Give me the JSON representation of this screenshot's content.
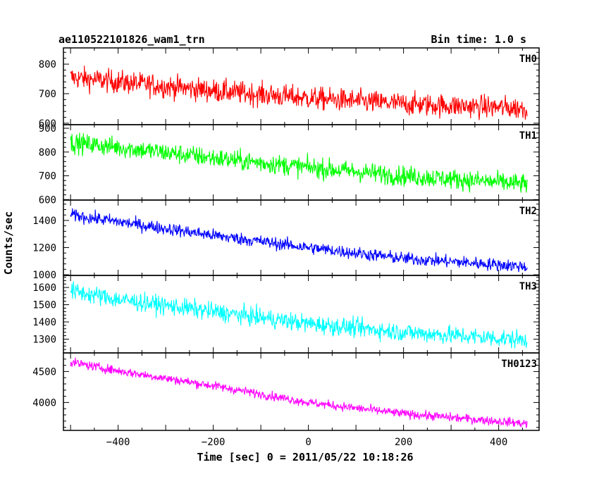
{
  "header": {
    "title": "ae110522101826_wam1_trn",
    "bin_time": "Bin time: 1.0 s"
  },
  "chart_data": {
    "type": "line",
    "xlabel": "Time [sec] 0 = 2011/05/22 10:18:26",
    "ylabel": "Counts/sec",
    "xlim": [
      -515,
      485
    ],
    "x_range": [
      -500,
      460
    ],
    "x_step": 1,
    "xticks": [
      -400,
      -200,
      0,
      200,
      400
    ],
    "grid": false,
    "panels": [
      {
        "name": "TH0",
        "color": "#ff0000",
        "ylim": [
          595,
          855
        ],
        "yticks": [
          600,
          700,
          800
        ],
        "trend": {
          "x": [
            -500,
            -400,
            -200,
            0,
            200,
            460
          ],
          "y": [
            755,
            740,
            710,
            685,
            665,
            650
          ]
        },
        "noise_amplitude": 35
      },
      {
        "name": "TH1",
        "color": "#00ff00",
        "ylim": [
          598,
          915
        ],
        "yticks": [
          600,
          700,
          800,
          900
        ],
        "trend": {
          "x": [
            -500,
            -400,
            -200,
            0,
            200,
            460
          ],
          "y": [
            840,
            820,
            775,
            735,
            700,
            665
          ]
        },
        "noise_amplitude": 38
      },
      {
        "name": "TH2",
        "color": "#0000ff",
        "ylim": [
          995,
          1550
        ],
        "yticks": [
          1000,
          1200,
          1400
        ],
        "trend": {
          "x": [
            -500,
            -400,
            -200,
            0,
            200,
            460
          ],
          "y": [
            1440,
            1390,
            1290,
            1200,
            1120,
            1060
          ]
        },
        "noise_amplitude": 42
      },
      {
        "name": "TH3",
        "color": "#00ffff",
        "ylim": [
          1220,
          1670
        ],
        "yticks": [
          1300,
          1400,
          1500,
          1600
        ],
        "trend": {
          "x": [
            -500,
            -400,
            -200,
            0,
            200,
            460
          ],
          "y": [
            1580,
            1530,
            1460,
            1390,
            1340,
            1295
          ]
        },
        "noise_amplitude": 48
      },
      {
        "name": "TH0123",
        "color": "#ff00ff",
        "ylim": [
          3550,
          4800
        ],
        "yticks": [
          4000,
          4500
        ],
        "trend": {
          "x": [
            -500,
            -400,
            -200,
            0,
            200,
            460
          ],
          "y": [
            4650,
            4510,
            4270,
            4000,
            3820,
            3660
          ]
        },
        "noise_amplitude": 65
      }
    ]
  }
}
